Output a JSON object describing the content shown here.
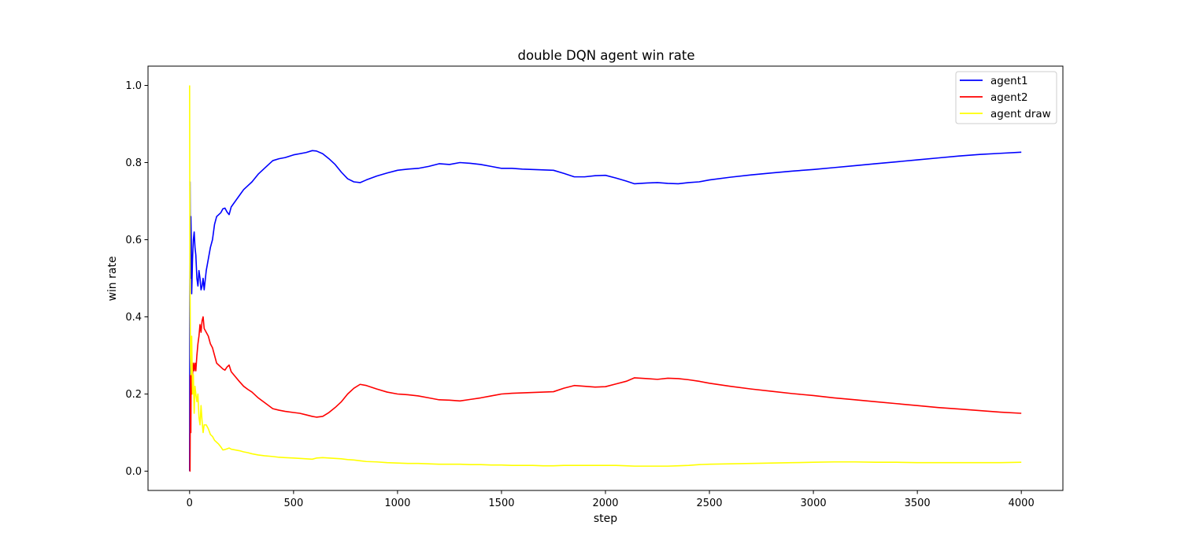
{
  "chart_data": {
    "type": "line",
    "title": "double DQN agent win rate",
    "xlabel": "step",
    "ylabel": "win rate",
    "xlim": [
      -200,
      4200
    ],
    "ylim": [
      -0.05,
      1.05
    ],
    "xticks": [
      0,
      500,
      1000,
      1500,
      2000,
      2500,
      3000,
      3500,
      4000
    ],
    "yticks": [
      0.0,
      0.2,
      0.4,
      0.6,
      0.8,
      1.0
    ],
    "xtick_labels": [
      "0",
      "500",
      "1000",
      "1500",
      "2000",
      "2500",
      "3000",
      "3500",
      "4000"
    ],
    "ytick_labels": [
      "0.0",
      "0.2",
      "0.4",
      "0.6",
      "0.8",
      "1.0"
    ],
    "grid": false,
    "legend_position": "top-right",
    "series": [
      {
        "name": "agent1",
        "color": "#0000ff",
        "x": [
          0,
          2,
          4,
          6,
          8,
          10,
          14,
          18,
          22,
          26,
          30,
          35,
          40,
          45,
          50,
          55,
          60,
          65,
          70,
          80,
          90,
          100,
          110,
          120,
          130,
          140,
          150,
          160,
          170,
          180,
          190,
          200,
          220,
          240,
          260,
          280,
          300,
          330,
          360,
          400,
          430,
          460,
          500,
          530,
          560,
          590,
          610,
          640,
          670,
          700,
          730,
          760,
          790,
          820,
          850,
          900,
          950,
          1000,
          1050,
          1100,
          1150,
          1200,
          1250,
          1300,
          1350,
          1400,
          1450,
          1500,
          1550,
          1600,
          1650,
          1700,
          1750,
          1800,
          1850,
          1900,
          1950,
          2000,
          2050,
          2100,
          2140,
          2200,
          2250,
          2300,
          2350,
          2400,
          2450,
          2500,
          2600,
          2700,
          2800,
          2900,
          3000,
          3100,
          3200,
          3300,
          3400,
          3500,
          3600,
          3700,
          3800,
          3900,
          4000
        ],
        "y": [
          0.0,
          0.75,
          0.5,
          0.66,
          0.6,
          0.46,
          0.55,
          0.6,
          0.62,
          0.58,
          0.56,
          0.5,
          0.48,
          0.52,
          0.5,
          0.47,
          0.48,
          0.5,
          0.47,
          0.52,
          0.55,
          0.58,
          0.6,
          0.64,
          0.66,
          0.665,
          0.67,
          0.68,
          0.682,
          0.672,
          0.665,
          0.685,
          0.7,
          0.715,
          0.73,
          0.74,
          0.75,
          0.77,
          0.785,
          0.805,
          0.81,
          0.813,
          0.82,
          0.823,
          0.826,
          0.831,
          0.83,
          0.823,
          0.81,
          0.795,
          0.775,
          0.758,
          0.75,
          0.748,
          0.755,
          0.765,
          0.773,
          0.78,
          0.783,
          0.785,
          0.79,
          0.797,
          0.795,
          0.8,
          0.798,
          0.795,
          0.79,
          0.785,
          0.785,
          0.783,
          0.782,
          0.781,
          0.78,
          0.772,
          0.763,
          0.763,
          0.766,
          0.767,
          0.76,
          0.752,
          0.745,
          0.747,
          0.748,
          0.746,
          0.745,
          0.748,
          0.75,
          0.755,
          0.762,
          0.768,
          0.773,
          0.778,
          0.782,
          0.787,
          0.792,
          0.797,
          0.802,
          0.807,
          0.812,
          0.817,
          0.821,
          0.824,
          0.827
        ]
      },
      {
        "name": "agent2",
        "color": "#ff0000",
        "x": [
          0,
          2,
          4,
          6,
          8,
          10,
          14,
          18,
          22,
          26,
          30,
          35,
          40,
          45,
          50,
          55,
          60,
          65,
          70,
          80,
          90,
          100,
          110,
          120,
          130,
          140,
          150,
          160,
          170,
          180,
          190,
          200,
          220,
          240,
          260,
          280,
          300,
          330,
          360,
          400,
          430,
          460,
          500,
          530,
          560,
          590,
          610,
          640,
          670,
          700,
          730,
          760,
          790,
          820,
          850,
          900,
          950,
          1000,
          1050,
          1100,
          1150,
          1200,
          1250,
          1300,
          1350,
          1400,
          1450,
          1500,
          1550,
          1600,
          1650,
          1700,
          1750,
          1800,
          1850,
          1900,
          1950,
          2000,
          2050,
          2100,
          2140,
          2200,
          2250,
          2300,
          2350,
          2400,
          2450,
          2500,
          2600,
          2700,
          2800,
          2900,
          3000,
          3100,
          3200,
          3300,
          3400,
          3500,
          3600,
          3700,
          3800,
          3900,
          4000
        ],
        "y": [
          0.0,
          0.0,
          0.25,
          0.1,
          0.3,
          0.2,
          0.25,
          0.28,
          0.26,
          0.28,
          0.26,
          0.3,
          0.33,
          0.35,
          0.38,
          0.36,
          0.39,
          0.4,
          0.37,
          0.36,
          0.35,
          0.33,
          0.32,
          0.3,
          0.28,
          0.275,
          0.27,
          0.265,
          0.262,
          0.27,
          0.275,
          0.258,
          0.245,
          0.232,
          0.22,
          0.212,
          0.205,
          0.19,
          0.178,
          0.162,
          0.158,
          0.155,
          0.152,
          0.15,
          0.146,
          0.142,
          0.14,
          0.142,
          0.152,
          0.165,
          0.18,
          0.2,
          0.215,
          0.225,
          0.222,
          0.213,
          0.205,
          0.2,
          0.198,
          0.195,
          0.19,
          0.185,
          0.184,
          0.182,
          0.186,
          0.19,
          0.195,
          0.2,
          0.202,
          0.203,
          0.204,
          0.205,
          0.206,
          0.215,
          0.222,
          0.22,
          0.218,
          0.219,
          0.226,
          0.233,
          0.242,
          0.24,
          0.238,
          0.241,
          0.24,
          0.237,
          0.233,
          0.228,
          0.22,
          0.213,
          0.207,
          0.201,
          0.196,
          0.19,
          0.185,
          0.18,
          0.175,
          0.17,
          0.165,
          0.161,
          0.157,
          0.153,
          0.15
        ]
      },
      {
        "name": "agent draw",
        "color": "#ffff00",
        "x": [
          0,
          2,
          4,
          6,
          8,
          10,
          14,
          18,
          22,
          26,
          30,
          35,
          40,
          45,
          50,
          55,
          60,
          65,
          70,
          80,
          90,
          100,
          110,
          120,
          130,
          140,
          150,
          160,
          170,
          180,
          190,
          200,
          220,
          240,
          260,
          280,
          300,
          330,
          360,
          400,
          430,
          460,
          500,
          530,
          560,
          590,
          610,
          640,
          670,
          700,
          730,
          760,
          790,
          820,
          850,
          900,
          950,
          1000,
          1050,
          1100,
          1150,
          1200,
          1250,
          1300,
          1350,
          1400,
          1450,
          1500,
          1550,
          1600,
          1650,
          1700,
          1750,
          1800,
          1850,
          1900,
          1950,
          2000,
          2050,
          2100,
          2140,
          2200,
          2250,
          2300,
          2350,
          2400,
          2450,
          2500,
          2600,
          2700,
          2800,
          2900,
          3000,
          3100,
          3200,
          3300,
          3400,
          3500,
          3600,
          3700,
          3800,
          3900,
          4000
        ],
        "y": [
          1.0,
          0.5,
          0.3,
          0.25,
          0.3,
          0.35,
          0.2,
          0.25,
          0.15,
          0.22,
          0.2,
          0.18,
          0.2,
          0.14,
          0.12,
          0.17,
          0.13,
          0.1,
          0.12,
          0.12,
          0.11,
          0.095,
          0.09,
          0.08,
          0.075,
          0.07,
          0.063,
          0.055,
          0.056,
          0.058,
          0.06,
          0.057,
          0.055,
          0.053,
          0.05,
          0.048,
          0.045,
          0.042,
          0.04,
          0.038,
          0.036,
          0.035,
          0.034,
          0.033,
          0.032,
          0.031,
          0.034,
          0.035,
          0.034,
          0.033,
          0.032,
          0.03,
          0.029,
          0.027,
          0.025,
          0.024,
          0.022,
          0.021,
          0.02,
          0.02,
          0.019,
          0.018,
          0.018,
          0.018,
          0.017,
          0.017,
          0.016,
          0.016,
          0.015,
          0.015,
          0.015,
          0.014,
          0.014,
          0.015,
          0.015,
          0.015,
          0.015,
          0.015,
          0.015,
          0.014,
          0.013,
          0.013,
          0.013,
          0.013,
          0.014,
          0.015,
          0.017,
          0.018,
          0.019,
          0.02,
          0.021,
          0.022,
          0.023,
          0.024,
          0.024,
          0.023,
          0.023,
          0.022,
          0.022,
          0.022,
          0.022,
          0.022,
          0.023
        ]
      }
    ]
  }
}
